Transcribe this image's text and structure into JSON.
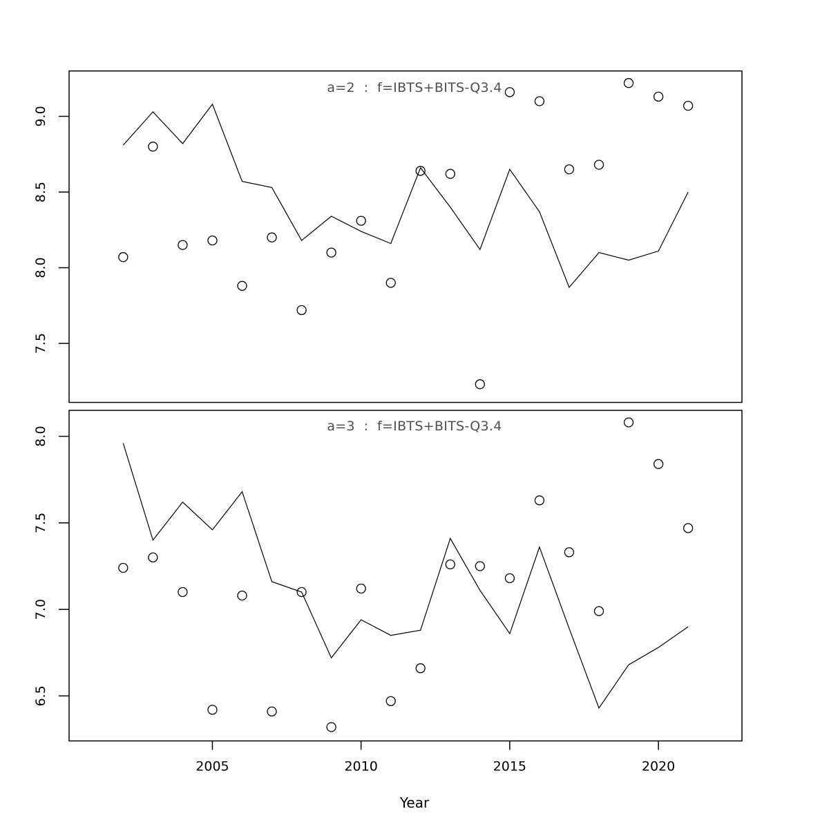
{
  "figure": {
    "xlabel": "Year",
    "background": "#ffffff",
    "axis_color": "#000000",
    "title_color": "#4f4f4f",
    "point_color": "#000000",
    "line_color": "#000000"
  },
  "chart_data": [
    {
      "type": "line",
      "panel": "top",
      "title": "a=2  :  f=IBTS+BITS-Q3.4",
      "xlabel": "Year",
      "ylabel": "",
      "grid": false,
      "legend": "none",
      "x": [
        2002,
        2003,
        2004,
        2005,
        2006,
        2007,
        2008,
        2009,
        2010,
        2011,
        2012,
        2013,
        2014,
        2015,
        2016,
        2017,
        2018,
        2019,
        2020,
        2021
      ],
      "series": [
        {
          "name": "model-fit-line",
          "style": "line",
          "values": [
            8.81,
            9.03,
            8.82,
            9.08,
            8.57,
            8.53,
            8.18,
            8.34,
            8.24,
            8.16,
            8.66,
            8.4,
            8.12,
            8.65,
            8.37,
            7.87,
            8.1,
            8.05,
            8.11,
            8.5
          ]
        },
        {
          "name": "observed-points",
          "style": "scatter",
          "values": [
            8.07,
            8.8,
            8.15,
            8.18,
            7.88,
            8.2,
            7.72,
            8.1,
            8.31,
            7.9,
            8.64,
            8.62,
            7.23,
            9.16,
            9.1,
            8.65,
            8.68,
            9.22,
            9.13,
            9.07
          ]
        }
      ],
      "xlim": [
        2000.18,
        2022.81
      ],
      "ylim": [
        7.11,
        9.3
      ],
      "xticks": [
        "2005",
        "2010",
        "2015",
        "2020"
      ],
      "yticks": [
        "7.5",
        "8.0",
        "8.5",
        "9.0"
      ],
      "show_x_axis": false
    },
    {
      "type": "line",
      "panel": "bottom",
      "title": "a=3  :  f=IBTS+BITS-Q3.4",
      "xlabel": "Year",
      "ylabel": "",
      "grid": false,
      "legend": "none",
      "x": [
        2002,
        2003,
        2004,
        2005,
        2006,
        2007,
        2008,
        2009,
        2010,
        2011,
        2012,
        2013,
        2014,
        2015,
        2016,
        2017,
        2018,
        2019,
        2020,
        2021
      ],
      "series": [
        {
          "name": "model-fit-line",
          "style": "line",
          "values": [
            7.96,
            7.4,
            7.62,
            7.46,
            7.68,
            7.16,
            7.1,
            6.72,
            6.94,
            6.85,
            6.88,
            7.41,
            7.11,
            6.86,
            7.36,
            6.89,
            6.43,
            6.68,
            6.78,
            6.9
          ]
        },
        {
          "name": "observed-points",
          "style": "scatter",
          "values": [
            7.24,
            7.3,
            7.1,
            6.42,
            7.08,
            6.41,
            7.1,
            6.32,
            7.12,
            6.47,
            6.66,
            7.26,
            7.25,
            7.18,
            7.63,
            7.33,
            6.99,
            8.08,
            7.84,
            7.47
          ]
        }
      ],
      "xlim": [
        2000.18,
        2022.81
      ],
      "ylim": [
        6.24,
        8.15
      ],
      "xticks": [
        "2005",
        "2010",
        "2015",
        "2020"
      ],
      "yticks": [
        "6.5",
        "7.0",
        "7.5",
        "8.0"
      ],
      "show_x_axis": true
    }
  ]
}
